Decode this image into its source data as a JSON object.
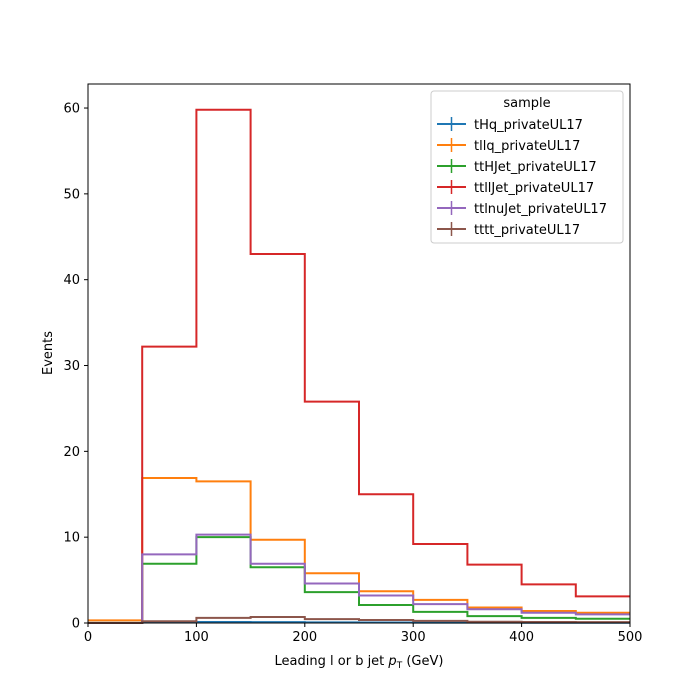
{
  "chart_data": {
    "type": "line",
    "style": "step-histogram",
    "bin_edges": [
      0,
      50,
      100,
      150,
      200,
      250,
      300,
      350,
      400,
      450,
      500
    ],
    "xlabel": "Leading l or b jet",
    "xlabel_symbol": "p",
    "xlabel_subscript": "T",
    "xlabel_unit": "(GeV)",
    "ylabel": "Events",
    "xlim": [
      0,
      500
    ],
    "ylim": [
      0,
      62.8
    ],
    "xticks": [
      0,
      100,
      200,
      300,
      400,
      500
    ],
    "yticks": [
      0,
      10,
      20,
      30,
      40,
      50,
      60
    ],
    "grid": false,
    "legend": {
      "title": "sample",
      "placement": "top-right"
    },
    "series": [
      {
        "name": "tHq_privateUL17",
        "color": "#1f77b4",
        "values": [
          0.02,
          0.08,
          0.12,
          0.1,
          0.08,
          0.06,
          0.05,
          0.04,
          0.03,
          0.03
        ]
      },
      {
        "name": "tllq_privateUL17",
        "color": "#ff7f0e",
        "values": [
          0.3,
          16.9,
          16.5,
          9.7,
          5.8,
          3.7,
          2.7,
          1.8,
          1.4,
          1.2
        ]
      },
      {
        "name": "ttHJet_privateUL17",
        "color": "#2ca02c",
        "values": [
          0.0,
          6.9,
          10.0,
          6.5,
          3.6,
          2.1,
          1.3,
          0.8,
          0.6,
          0.5
        ]
      },
      {
        "name": "ttllJet_privateUL17",
        "color": "#d62728",
        "values": [
          0.0,
          32.2,
          59.8,
          43.0,
          25.8,
          15.0,
          9.2,
          6.8,
          4.5,
          3.1
        ]
      },
      {
        "name": "ttlnuJet_privateUL17",
        "color": "#9467bd",
        "values": [
          0.0,
          8.0,
          10.3,
          6.9,
          4.6,
          3.2,
          2.2,
          1.6,
          1.2,
          1.0
        ]
      },
      {
        "name": "tttt_privateUL17",
        "color": "#8c564b",
        "values": [
          0.0,
          0.2,
          0.6,
          0.7,
          0.45,
          0.35,
          0.25,
          0.15,
          0.12,
          0.1
        ]
      }
    ]
  }
}
